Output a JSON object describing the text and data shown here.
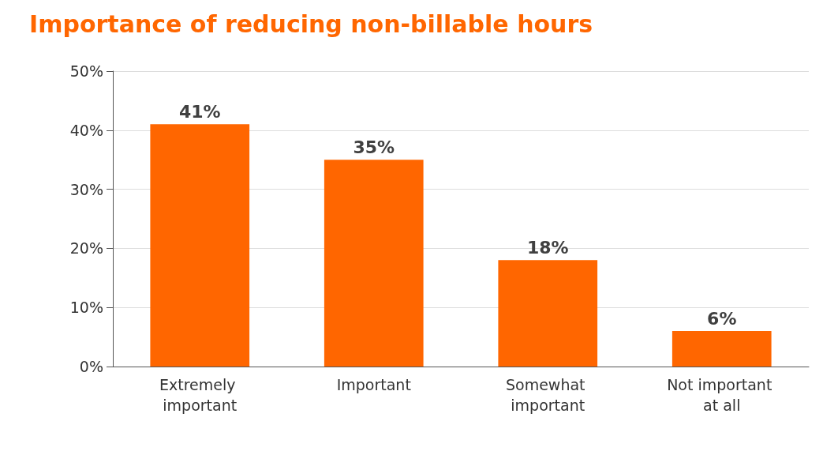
{
  "chart_data": {
    "type": "bar",
    "title": "Importance of reducing non-billable hours",
    "categories": [
      "Extremely important",
      "Important",
      "Somewhat important",
      "Not important at all"
    ],
    "values": [
      41,
      35,
      18,
      6
    ],
    "color": "#ff6600",
    "value_labels": [
      "41%",
      "35%",
      "18%",
      "6%"
    ],
    "ylim": [
      0,
      50
    ],
    "yticks": [
      {
        "value": 0,
        "label": "0%"
      },
      {
        "value": 10,
        "label": "10%"
      },
      {
        "value": 20,
        "label": "20%"
      },
      {
        "value": 30,
        "label": "30%"
      },
      {
        "value": 40,
        "label": "40%"
      },
      {
        "value": 50,
        "label": "50%"
      }
    ],
    "grid": "y"
  }
}
